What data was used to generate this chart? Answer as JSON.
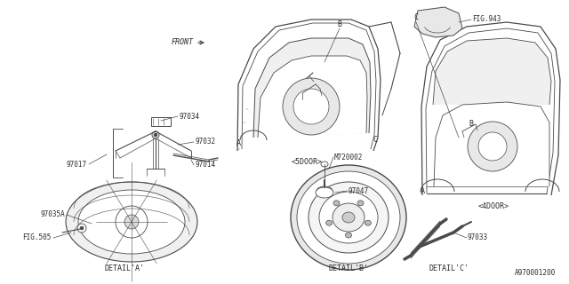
{
  "bg_color": "#ffffff",
  "line_color": "#4a4a4a",
  "text_color": "#2a2a2a",
  "detail_labels": [
    "DETAIL’A’",
    "DETAIL’B’",
    "DETAIL’C’"
  ],
  "labels": {
    "front": "FRONT",
    "5door": "<5DOOR>",
    "4door": "<4DOOR>",
    "fig943": "FIG.943",
    "fig505": "FIG.505",
    "watermark": "A970001200"
  },
  "figsize": [
    6.4,
    3.2
  ],
  "dpi": 100
}
